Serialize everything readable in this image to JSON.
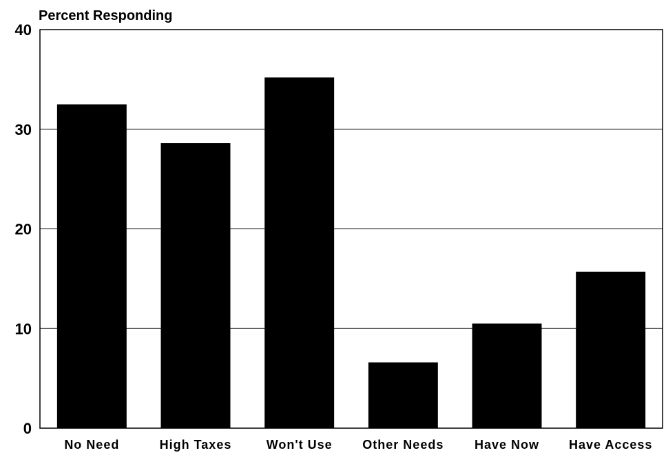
{
  "chart_data": {
    "type": "bar",
    "title": "",
    "xlabel": "",
    "ylabel": "Percent Responding",
    "categories": [
      "No Need",
      "High Taxes",
      "Won't Use",
      "Other Needs",
      "Have Now",
      "Have Access"
    ],
    "values": [
      32.5,
      28.6,
      35.2,
      6.6,
      10.5,
      15.7
    ],
    "ylim": [
      0,
      40
    ],
    "yticks": [
      0,
      10,
      20,
      30,
      40
    ],
    "grid": true,
    "legend": "none",
    "bar_color": "#000000"
  }
}
